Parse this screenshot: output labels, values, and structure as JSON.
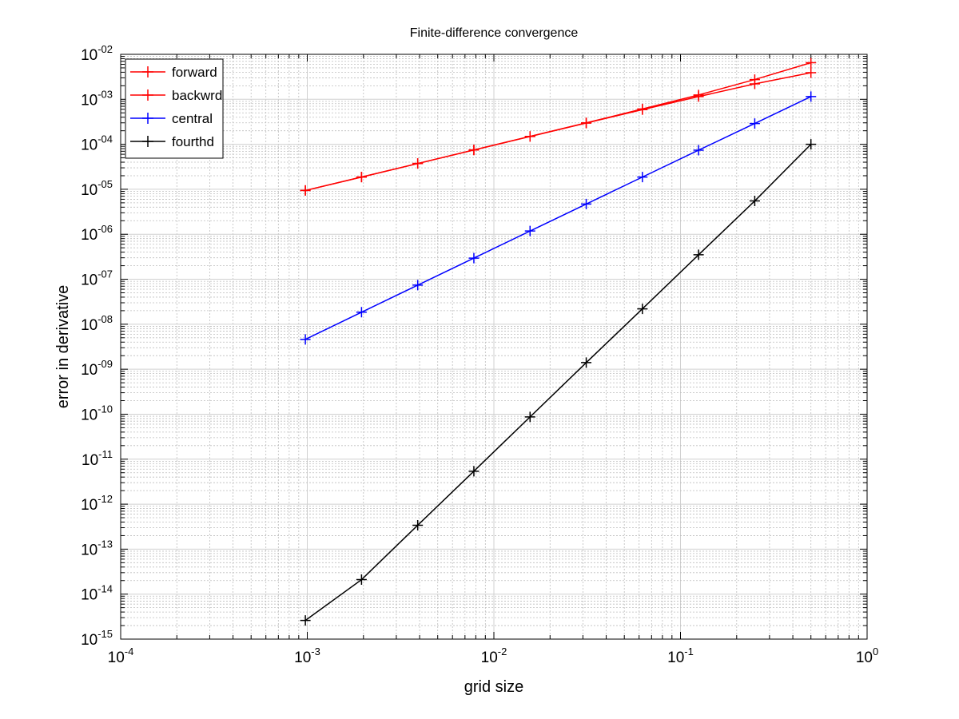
{
  "chart_data": {
    "type": "line",
    "title": "Finite-difference convergence",
    "xlabel": "grid size",
    "ylabel": "error in derivative",
    "xscale": "log",
    "yscale": "log",
    "xlim": [
      0.0001,
      1
    ],
    "ylim": [
      1e-15,
      0.01
    ],
    "grid": "on",
    "legend_position": "top-left",
    "x": [
      0.0009765625,
      0.001953125,
      0.00390625,
      0.0078125,
      0.015625,
      0.03125,
      0.0625,
      0.125,
      0.25,
      0.5
    ],
    "series": [
      {
        "name": "forward",
        "color": "#ff0000",
        "marker": "+",
        "values": [
          9.4e-06,
          1.87e-05,
          3.74e-05,
          7.49e-05,
          0.00015,
          0.0003,
          0.00061,
          0.00125,
          0.00275,
          0.0065
        ]
      },
      {
        "name": "backwrd",
        "color": "#ff0000",
        "marker": "+",
        "values": [
          9.4e-06,
          1.87e-05,
          3.74e-05,
          7.46e-05,
          0.000149,
          0.000296,
          0.00059,
          0.00115,
          0.0022,
          0.0039
        ]
      },
      {
        "name": "central",
        "color": "#0000ff",
        "marker": "+",
        "values": [
          4.6e-09,
          1.85e-08,
          7.4e-08,
          2.95e-07,
          1.18e-06,
          4.7e-06,
          1.87e-05,
          7.4e-05,
          0.00029,
          0.00115
        ]
      },
      {
        "name": "fourthd",
        "color": "#000000",
        "marker": "+",
        "values": [
          2.6e-15,
          2.1e-14,
          3.4e-13,
          5.4e-12,
          8.7e-11,
          1.4e-09,
          2.2e-08,
          3.5e-07,
          5.5e-06,
          0.0001
        ]
      }
    ],
    "x_ticks": [
      {
        "base": "10",
        "exp": "-4",
        "value": 0.0001
      },
      {
        "base": "10",
        "exp": "-3",
        "value": 0.001
      },
      {
        "base": "10",
        "exp": "-2",
        "value": 0.01
      },
      {
        "base": "10",
        "exp": "-1",
        "value": 0.1
      },
      {
        "base": "10",
        "exp": "0",
        "value": 1
      }
    ],
    "y_ticks": [
      {
        "base": "10",
        "exp": "-15",
        "value": 1e-15
      },
      {
        "base": "10",
        "exp": "-14",
        "value": 1e-14
      },
      {
        "base": "10",
        "exp": "-13",
        "value": 1e-13
      },
      {
        "base": "10",
        "exp": "-12",
        "value": 1e-12
      },
      {
        "base": "10",
        "exp": "-11",
        "value": 1e-11
      },
      {
        "base": "10",
        "exp": "-10",
        "value": 1e-10
      },
      {
        "base": "10",
        "exp": "-09",
        "value": 1e-09
      },
      {
        "base": "10",
        "exp": "-08",
        "value": 1e-08
      },
      {
        "base": "10",
        "exp": "-07",
        "value": 1e-07
      },
      {
        "base": "10",
        "exp": "-06",
        "value": 1e-06
      },
      {
        "base": "10",
        "exp": "-05",
        "value": 1e-05
      },
      {
        "base": "10",
        "exp": "-04",
        "value": 0.0001
      },
      {
        "base": "10",
        "exp": "-03",
        "value": 0.001
      },
      {
        "base": "10",
        "exp": "-02",
        "value": 0.01
      }
    ]
  }
}
